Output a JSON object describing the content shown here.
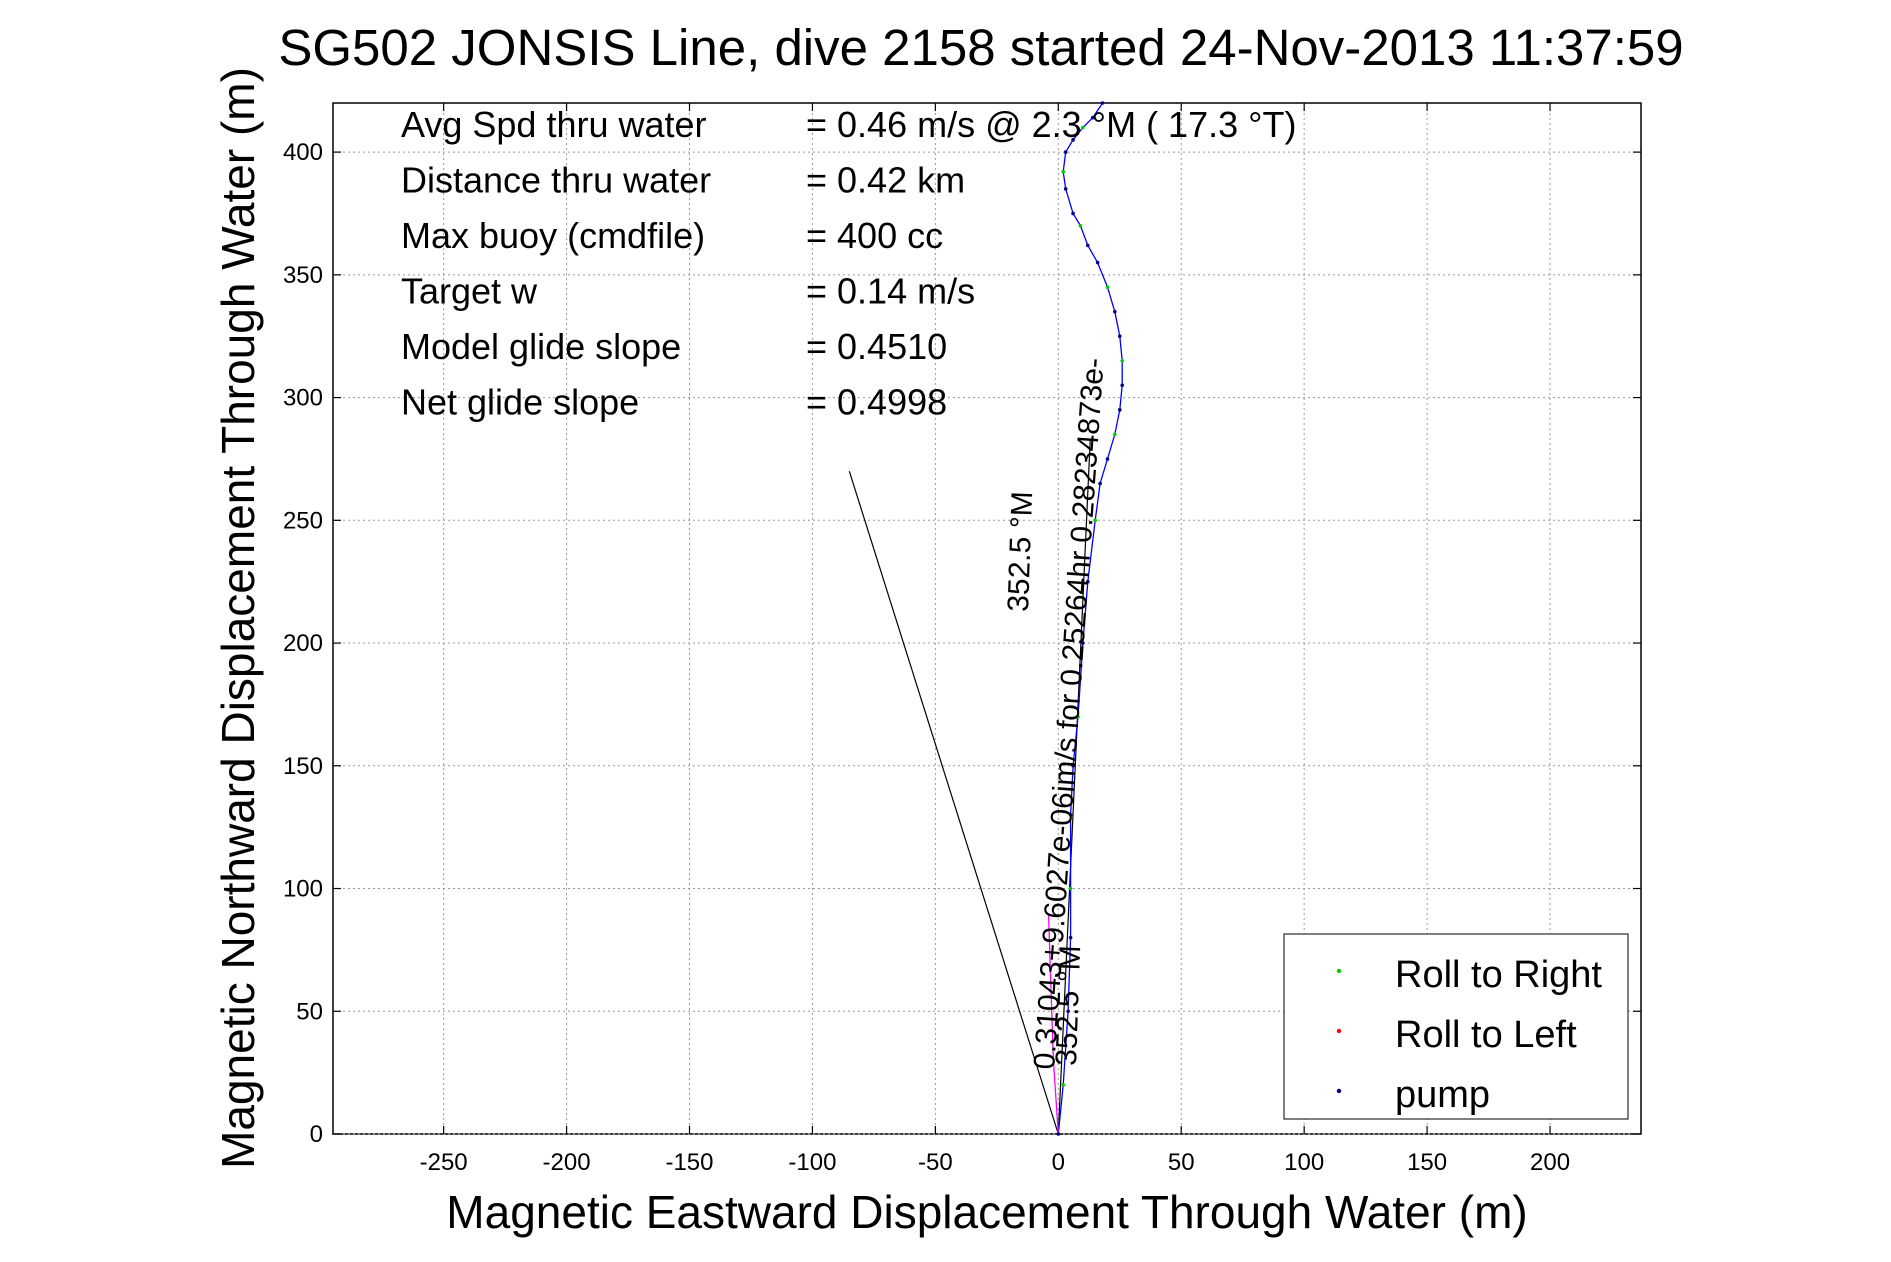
{
  "chart_data": {
    "type": "line",
    "title": "SG502 JONSIS Line, dive 2158 started 24-Nov-2013 11:37:59",
    "xlabel": "Magnetic Eastward Displacement Through Water (m)",
    "ylabel": "Magnetic Northward Displacement Through Water (m)",
    "xlim": [
      -295,
      237
    ],
    "ylim": [
      0,
      420
    ],
    "xticks": [
      -250,
      -200,
      -150,
      -100,
      -50,
      0,
      50,
      100,
      150,
      200
    ],
    "yticks": [
      0,
      50,
      100,
      150,
      200,
      250,
      300,
      350,
      400
    ],
    "grid": true,
    "legend_position": "lower-right",
    "legend": [
      {
        "label": "Roll to Right",
        "color": "#00cc00"
      },
      {
        "label": "Roll to Left",
        "color": "#ff0000"
      },
      {
        "label": "pump",
        "color": "#000080"
      }
    ],
    "stats": [
      {
        "label": "Avg Spd thru water",
        "value": "=  0.46 m/s @   2.3 °M ( 17.3 °T)"
      },
      {
        "label": "Distance thru water",
        "value": "=  0.42 km"
      },
      {
        "label": "Max buoy (cmdfile)",
        "value": "= 400 cc"
      },
      {
        "label": "Target w",
        "value": "= 0.14 m/s"
      },
      {
        "label": "Model glide slope",
        "value": "= 0.4510"
      },
      {
        "label": "Net glide slope",
        "value": "= 0.4998"
      }
    ],
    "annotations": {
      "current_label": "0.31043+9.6027e-06im/s for 0.25264hr 0.28234873e-",
      "heading_label_upper": "352.5 °M",
      "heading_label_lower": "352.5 °M"
    },
    "series": [
      {
        "name": "track",
        "color": "#0000ff",
        "x": [
          0,
          2,
          4,
          5,
          5,
          5,
          6,
          8,
          10,
          12,
          15,
          17,
          20,
          23,
          25,
          26,
          26,
          25,
          23,
          20,
          16,
          12,
          9,
          6,
          3,
          2,
          3,
          6,
          10,
          14,
          18
        ],
        "y": [
          0,
          20,
          50,
          80,
          100,
          130,
          150,
          170,
          200,
          225,
          250,
          265,
          275,
          285,
          295,
          305,
          315,
          325,
          335,
          345,
          355,
          362,
          370,
          375,
          385,
          392,
          400,
          405,
          410,
          414,
          420
        ]
      },
      {
        "name": "start-segment",
        "color": "#ff00ff",
        "x": [
          0,
          -2,
          -3,
          -4
        ],
        "y": [
          0,
          30,
          60,
          90
        ]
      }
    ],
    "reference_lines": [
      {
        "name": "current-vector",
        "x": [
          0,
          -85
        ],
        "y": [
          0,
          270
        ]
      },
      {
        "name": "heading-vector",
        "x": [
          0,
          13
        ],
        "y": [
          0,
          283
        ]
      }
    ]
  }
}
